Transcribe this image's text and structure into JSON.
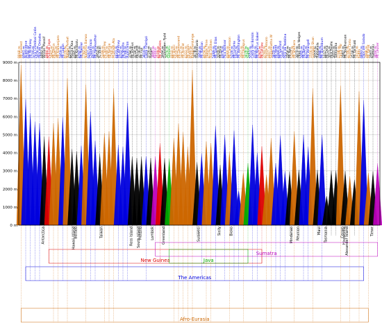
{
  "chart_data": {
    "type": "line",
    "title": "",
    "xlabel": "",
    "ylabel": "",
    "ylim": [
      0,
      9000
    ],
    "yticks": [
      0,
      1000,
      2000,
      3000,
      4000,
      5000,
      6000,
      7000,
      8000,
      9000
    ],
    "ytick_labels": [
      "0 m",
      "1000 m",
      "2000 m",
      "3000 m",
      "4000 m",
      "5000 m",
      "6000 m",
      "7000 m",
      "8000 m",
      "9000 m"
    ],
    "grid": true,
    "colors": {
      "afro_eurasia": "#cc6600",
      "americas": "#0000dd",
      "new_guinea": "#dd0000",
      "java": "#00aa00",
      "sumatra": "#bb00bb",
      "other": "#000000"
    },
    "peaks": [
      {
        "name": "Mt Everest",
        "elev": 8848,
        "group": "afro_eurasia"
      },
      {
        "name": "Aconcagua",
        "elev": 6961,
        "group": "americas"
      },
      {
        "name": "Mt McKinley",
        "elev": 6194,
        "group": "americas"
      },
      {
        "name": "Pico Cristóbal Colón",
        "elev": 5700,
        "group": "americas"
      },
      {
        "name": "Pico de Orizaba",
        "elev": 5636,
        "group": "americas"
      },
      {
        "name": "Vinson Massif",
        "elev": 4892,
        "group": "other"
      },
      {
        "name": "Puncak Jaya",
        "elev": 4884,
        "group": "new_guinea"
      },
      {
        "name": "Mt Elbrus",
        "elev": 5642,
        "group": "afro_eurasia"
      },
      {
        "name": "Mt Kilimanjaro",
        "elev": 5895,
        "group": "afro_eurasia"
      },
      {
        "name": "Mt Logan",
        "elev": 5959,
        "group": "americas"
      },
      {
        "name": "Nanga Parbat",
        "elev": 8126,
        "group": "afro_eurasia"
      },
      {
        "name": "Mauna Kea",
        "elev": 4205,
        "group": "other"
      },
      {
        "name": "Mt Kinabalu",
        "elev": 4095,
        "group": "other"
      },
      {
        "name": "Mt Rainier",
        "elev": 4392,
        "group": "americas"
      },
      {
        "name": "Namcha Barwa",
        "elev": 7782,
        "group": "afro_eurasia"
      },
      {
        "name": "Chimborazo",
        "elev": 6267,
        "group": "americas"
      },
      {
        "name": "Mt Fairweather",
        "elev": 4671,
        "group": "americas"
      },
      {
        "name": "Yu Shan",
        "elev": 3952,
        "group": "other"
      },
      {
        "name": "Mt Stanley",
        "elev": 5109,
        "group": "afro_eurasia"
      },
      {
        "name": "Mt Kenya",
        "elev": 5199,
        "group": "afro_eurasia"
      },
      {
        "name": "Muztagh Ata",
        "elev": 7546,
        "group": "afro_eurasia"
      },
      {
        "name": "Mt Whitney",
        "elev": 4421,
        "group": "americas"
      },
      {
        "name": "Mt Shasta",
        "elev": 4322,
        "group": "americas"
      },
      {
        "name": "Huascarán",
        "elev": 6768,
        "group": "americas"
      },
      {
        "name": "Mt Erebus",
        "elev": 3794,
        "group": "other"
      },
      {
        "name": "Mt Cook",
        "elev": 3724,
        "group": "other"
      },
      {
        "name": "Mt Fuji",
        "elev": 3776,
        "group": "other"
      },
      {
        "name": "Cerro Chirripó",
        "elev": 3819,
        "group": "americas"
      },
      {
        "name": "Rinjani",
        "elev": 3726,
        "group": "other"
      },
      {
        "name": "Kerinci",
        "elev": 3805,
        "group": "sumatra"
      },
      {
        "name": "Mt Wilhelm",
        "elev": 4509,
        "group": "new_guinea"
      },
      {
        "name": "Gunnbjørn Fjeld",
        "elev": 3694,
        "group": "other"
      },
      {
        "name": "Semeru",
        "elev": 3676,
        "group": "java"
      },
      {
        "name": "Mt Blanc",
        "elev": 4810,
        "group": "afro_eurasia"
      },
      {
        "name": "Mt Damavand",
        "elev": 5610,
        "group": "afro_eurasia"
      },
      {
        "name": "Mt Ararat",
        "elev": 5137,
        "group": "afro_eurasia"
      },
      {
        "name": "Mt Elgon",
        "elev": 4321,
        "group": "afro_eurasia"
      },
      {
        "name": "Kangchenjunga",
        "elev": 8586,
        "group": "afro_eurasia"
      },
      {
        "name": "Rantemario",
        "elev": 3478,
        "group": "other"
      },
      {
        "name": "Mt Robson",
        "elev": 3954,
        "group": "americas"
      },
      {
        "name": "Monte Rosa",
        "elev": 4634,
        "group": "afro_eurasia"
      },
      {
        "name": "Ras Dashen",
        "elev": 4550,
        "group": "afro_eurasia"
      },
      {
        "name": "Mt Saint Elias",
        "elev": 5489,
        "group": "americas"
      },
      {
        "name": "Mt Etna",
        "elev": 3329,
        "group": "other"
      },
      {
        "name": "Pico Bolívar",
        "elev": 4978,
        "group": "americas"
      },
      {
        "name": "Mt Cameroon",
        "elev": 4040,
        "group": "afro_eurasia"
      },
      {
        "name": "Mt Lucania",
        "elev": 5226,
        "group": "americas"
      },
      {
        "name": "Mt Washington",
        "elev": 1917,
        "group": "americas"
      },
      {
        "name": "Mt Olympus",
        "elev": 2917,
        "group": "afro_eurasia"
      },
      {
        "name": "Slamet",
        "elev": 3428,
        "group": "java"
      },
      {
        "name": "Cerro del Bolsón",
        "elev": 5552,
        "group": "americas"
      },
      {
        "name": "Mt Marcus Baker",
        "elev": 4016,
        "group": "americas"
      },
      {
        "name": "Mt Giluwe",
        "elev": 4367,
        "group": "new_guinea"
      },
      {
        "name": "Monte Amaro",
        "elev": 2793,
        "group": "afro_eurasia"
      },
      {
        "name": "Sagarmatha W",
        "elev": 4807,
        "group": "afro_eurasia"
      },
      {
        "name": "Mt Hood",
        "elev": 3429,
        "group": "americas"
      },
      {
        "name": "Mt Sanford",
        "elev": 4949,
        "group": "americas"
      },
      {
        "name": "Pico da Neblina",
        "elev": 2995,
        "group": "americas"
      },
      {
        "name": "Mt Apo",
        "elev": 2954,
        "group": "other"
      },
      {
        "name": "Mt Shkhara",
        "elev": 5201,
        "group": "afro_eurasia"
      },
      {
        "name": "Piton des Neiges",
        "elev": 3070,
        "group": "other"
      },
      {
        "name": "Mt Bona",
        "elev": 5005,
        "group": "americas"
      },
      {
        "name": "Mt Wrangell",
        "elev": 4317,
        "group": "americas"
      },
      {
        "name": "Gongga Shan",
        "elev": 7556,
        "group": "afro_eurasia"
      },
      {
        "name": "Haleakala",
        "elev": 3055,
        "group": "other"
      },
      {
        "name": "Mt Blackburn",
        "elev": 4996,
        "group": "americas"
      },
      {
        "name": "Mt Ossa",
        "elev": 1617,
        "group": "other"
      },
      {
        "name": "Pico Basile",
        "elev": 3011,
        "group": "other"
      },
      {
        "name": "Tateyama",
        "elev": 3015,
        "group": "other"
      },
      {
        "name": "Tirich Mir",
        "elev": 7708,
        "group": "afro_eurasia"
      },
      {
        "name": "Mt Stephenson",
        "elev": 2987,
        "group": "other"
      },
      {
        "name": "Monte Cinto",
        "elev": 2706,
        "group": "afro_eurasia"
      },
      {
        "name": "Mt Taranaki",
        "elev": 2518,
        "group": "other"
      },
      {
        "name": "Kabru",
        "elev": 7412,
        "group": "afro_eurasia"
      },
      {
        "name": "Ojos del Salado",
        "elev": 6893,
        "group": "americas"
      },
      {
        "name": "Mt Tahat",
        "elev": 2908,
        "group": "afro_eurasia"
      },
      {
        "name": "Ramelau",
        "elev": 2963,
        "group": "other"
      },
      {
        "name": "Mt Leuser",
        "elev": 3404,
        "group": "sumatra"
      }
    ],
    "island_labels": [
      {
        "text": "Antarctica",
        "peak": 5
      },
      {
        "text": "Hawaii Island",
        "peak": 11
      },
      {
        "text": "Borneo",
        "peak": 12
      },
      {
        "text": "Taiwan",
        "peak": 17
      },
      {
        "text": "Ross Island",
        "peak": 24
      },
      {
        "text": "South Island",
        "peak": 25
      },
      {
        "text": "Honshu",
        "peak": 26
      },
      {
        "text": "Lombok",
        "peak": 28
      },
      {
        "text": "Greenland",
        "peak": 31
      },
      {
        "text": "Sulawesi",
        "peak": 38
      },
      {
        "text": "Sicily",
        "peak": 43
      },
      {
        "text": "Bioko",
        "peak": 45
      },
      {
        "text": "Réunion",
        "peak": 60
      },
      {
        "text": "Maui",
        "peak": 64
      },
      {
        "text": "Tasmania",
        "peak": 66
      },
      {
        "text": "Ceram",
        "peak": 69
      },
      {
        "text": "Hispaniola",
        "peak": 70
      },
      {
        "text": "Alexander Island",
        "peak": 70
      },
      {
        "text": "Timor",
        "peak": 76
      },
      {
        "text": "Mindanao",
        "peak": 58
      }
    ],
    "groups": [
      {
        "name": "New Guinea",
        "key": "new_guinea"
      },
      {
        "name": "Java",
        "key": "java"
      },
      {
        "name": "Sumatra",
        "key": "sumatra"
      },
      {
        "name": "The Americas",
        "key": "americas"
      },
      {
        "name": "Afro-Eurasia",
        "key": "afro_eurasia"
      }
    ]
  }
}
